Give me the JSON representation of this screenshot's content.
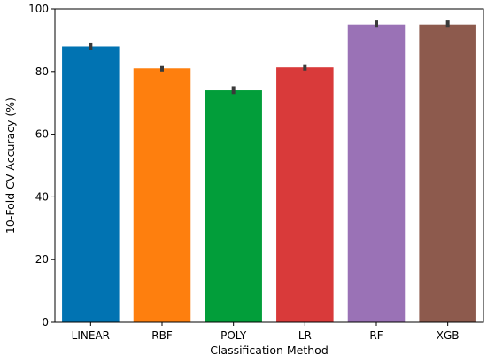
{
  "chart_data": {
    "type": "bar",
    "title": "",
    "xlabel": "Classification Method",
    "ylabel": "10-Fold CV Accuracy (%)",
    "categories": [
      "LINEAR",
      "RBF",
      "POLY",
      "LR",
      "RF",
      "XGB"
    ],
    "values": [
      88,
      81,
      74,
      81.3,
      95,
      95
    ],
    "error_low": [
      87,
      80,
      72.8,
      80.3,
      94,
      94
    ],
    "error_high": [
      89,
      82,
      75.3,
      82.3,
      96.3,
      96.3
    ],
    "colors": [
      "#0173b2",
      "#fe7f0e",
      "#029e3a",
      "#d93a3a",
      "#9a72b6",
      "#8d5a4d"
    ],
    "ylim": [
      0,
      100
    ],
    "yticks": [
      "0",
      "20",
      "40",
      "60",
      "80",
      "100"
    ],
    "grid": false,
    "legend": "none"
  }
}
